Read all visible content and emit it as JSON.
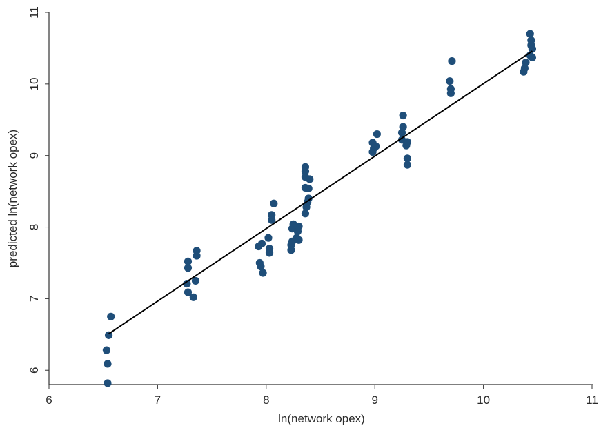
{
  "chart_data": {
    "type": "scatter",
    "title": "",
    "xlabel": "ln(network opex)",
    "ylabel": "predicted ln(network opex)",
    "xlim": [
      6,
      11
    ],
    "ylim": [
      5.8,
      11
    ],
    "xticks": [
      6,
      7,
      8,
      9,
      10,
      11
    ],
    "yticks": [
      6,
      7,
      8,
      9,
      10,
      11
    ],
    "grid": false,
    "legend": "none",
    "point_color": "#1f4e79",
    "line_color": "#000000",
    "points": [
      [
        6.54,
        5.82
      ],
      [
        6.54,
        6.09
      ],
      [
        6.53,
        6.28
      ],
      [
        6.55,
        6.49
      ],
      [
        6.57,
        6.75
      ],
      [
        7.28,
        7.09
      ],
      [
        7.27,
        7.21
      ],
      [
        7.28,
        7.43
      ],
      [
        7.28,
        7.52
      ],
      [
        7.33,
        7.02
      ],
      [
        7.35,
        7.25
      ],
      [
        7.36,
        7.6
      ],
      [
        7.36,
        7.67
      ],
      [
        7.94,
        7.5
      ],
      [
        7.95,
        7.45
      ],
      [
        7.97,
        7.36
      ],
      [
        7.93,
        7.73
      ],
      [
        7.96,
        7.77
      ],
      [
        8.03,
        7.64
      ],
      [
        8.03,
        7.7
      ],
      [
        8.02,
        7.85
      ],
      [
        8.05,
        8.1
      ],
      [
        8.05,
        8.17
      ],
      [
        8.07,
        8.33
      ],
      [
        8.23,
        7.68
      ],
      [
        8.23,
        7.75
      ],
      [
        8.24,
        7.8
      ],
      [
        8.24,
        7.98
      ],
      [
        8.25,
        8.04
      ],
      [
        8.28,
        7.85
      ],
      [
        8.29,
        7.94
      ],
      [
        8.3,
        8.01
      ],
      [
        8.3,
        7.82
      ],
      [
        8.36,
        8.19
      ],
      [
        8.37,
        8.28
      ],
      [
        8.38,
        8.35
      ],
      [
        8.39,
        8.4
      ],
      [
        8.36,
        8.55
      ],
      [
        8.36,
        8.7
      ],
      [
        8.36,
        8.78
      ],
      [
        8.36,
        8.84
      ],
      [
        8.39,
        8.54
      ],
      [
        8.4,
        8.67
      ],
      [
        8.98,
        9.05
      ],
      [
        8.99,
        9.1
      ],
      [
        8.98,
        9.18
      ],
      [
        9.01,
        9.13
      ],
      [
        9.02,
        9.3
      ],
      [
        9.25,
        9.22
      ],
      [
        9.25,
        9.32
      ],
      [
        9.26,
        9.4
      ],
      [
        9.26,
        9.56
      ],
      [
        9.29,
        9.14
      ],
      [
        9.3,
        9.19
      ],
      [
        9.3,
        8.87
      ],
      [
        9.3,
        8.96
      ],
      [
        9.7,
        9.87
      ],
      [
        9.7,
        9.93
      ],
      [
        9.69,
        10.04
      ],
      [
        9.71,
        10.32
      ],
      [
        10.37,
        10.17
      ],
      [
        10.38,
        10.22
      ],
      [
        10.39,
        10.3
      ],
      [
        10.43,
        10.4
      ],
      [
        10.44,
        10.54
      ],
      [
        10.44,
        10.61
      ],
      [
        10.43,
        10.7
      ],
      [
        10.45,
        10.37
      ],
      [
        10.45,
        10.49
      ]
    ],
    "fit_line": {
      "x": [
        6.55,
        10.45
      ],
      "y": [
        6.51,
        10.46
      ]
    }
  }
}
